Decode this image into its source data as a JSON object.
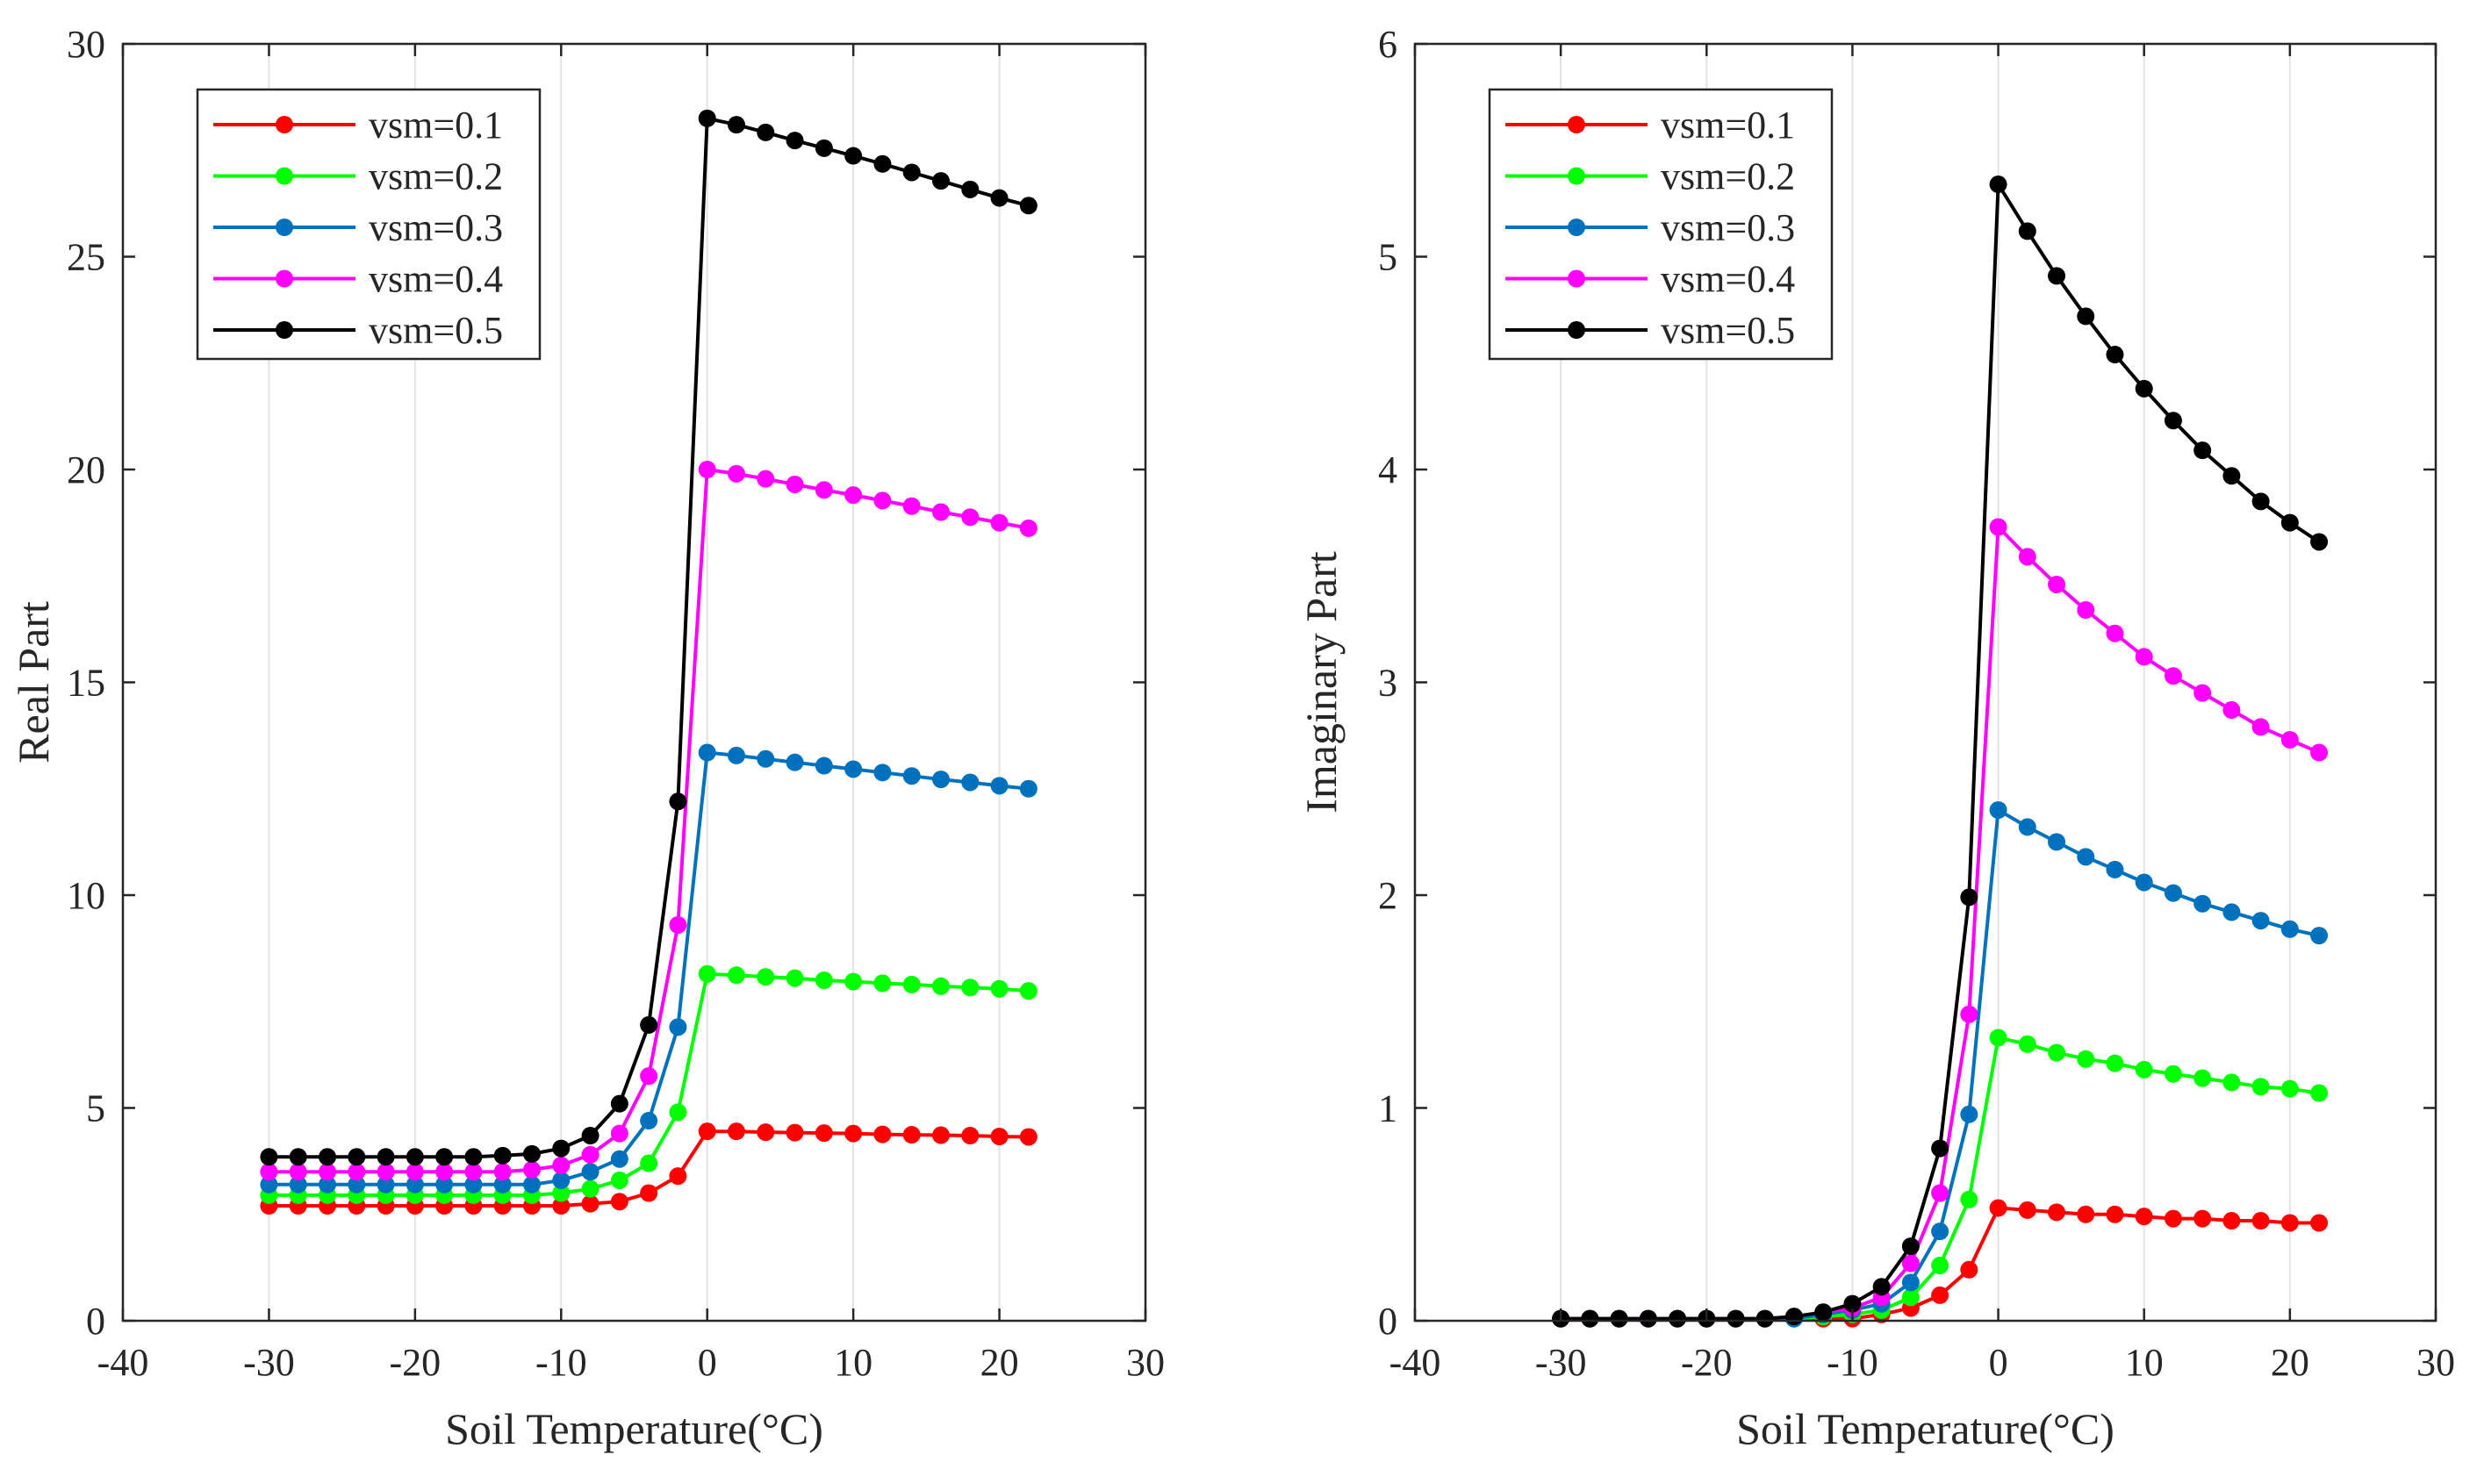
{
  "chart_data": [
    {
      "type": "line",
      "title": "",
      "xlabel": "Soil Temperature(°C)",
      "ylabel": "Real Part",
      "xlim": [
        -40,
        30
      ],
      "ylim": [
        0,
        30
      ],
      "xticks": [
        "-40",
        "-30",
        "-20",
        "-10",
        "0",
        "10",
        "20",
        "30"
      ],
      "yticks": [
        "0",
        "5",
        "10",
        "15",
        "20",
        "25",
        "30"
      ],
      "grid": "vertical",
      "legend_position": "top-left",
      "x": [
        -30,
        -28,
        -26,
        -24,
        -22,
        -20,
        -18,
        -16,
        -14,
        -12,
        -10,
        -8,
        -6,
        -4,
        -2,
        0,
        2,
        4,
        6,
        8,
        10,
        12,
        14,
        16,
        18,
        20,
        22
      ],
      "series": [
        {
          "name": "vsm=0.1",
          "color": "#ff0000",
          "values": [
            2.7,
            2.7,
            2.7,
            2.7,
            2.7,
            2.7,
            2.7,
            2.7,
            2.7,
            2.7,
            2.7,
            2.75,
            2.8,
            3.0,
            3.4,
            4.45,
            4.45,
            4.43,
            4.42,
            4.41,
            4.4,
            4.38,
            4.37,
            4.36,
            4.35,
            4.33,
            4.32
          ]
        },
        {
          "name": "vsm=0.2",
          "color": "#00ff00",
          "values": [
            2.95,
            2.95,
            2.95,
            2.95,
            2.95,
            2.95,
            2.95,
            2.95,
            2.95,
            2.95,
            3.0,
            3.1,
            3.3,
            3.7,
            4.9,
            8.15,
            8.12,
            8.08,
            8.05,
            8.0,
            7.97,
            7.93,
            7.9,
            7.86,
            7.83,
            7.8,
            7.75
          ]
        },
        {
          "name": "vsm=0.3",
          "color": "#0072bd",
          "values": [
            3.2,
            3.2,
            3.2,
            3.2,
            3.2,
            3.2,
            3.2,
            3.2,
            3.2,
            3.2,
            3.3,
            3.5,
            3.8,
            4.7,
            6.9,
            13.35,
            13.28,
            13.2,
            13.12,
            13.04,
            12.96,
            12.88,
            12.8,
            12.72,
            12.65,
            12.57,
            12.5
          ]
        },
        {
          "name": "vsm=0.4",
          "color": "#ff00ff",
          "values": [
            3.5,
            3.5,
            3.5,
            3.5,
            3.5,
            3.5,
            3.5,
            3.5,
            3.5,
            3.55,
            3.65,
            3.9,
            4.4,
            5.75,
            9.3,
            20.0,
            19.9,
            19.78,
            19.65,
            19.52,
            19.4,
            19.27,
            19.14,
            19.0,
            18.88,
            18.75,
            18.62
          ]
        },
        {
          "name": "vsm=0.5",
          "color": "#000000",
          "values": [
            3.85,
            3.85,
            3.85,
            3.85,
            3.85,
            3.85,
            3.85,
            3.85,
            3.88,
            3.92,
            4.05,
            4.35,
            5.1,
            6.95,
            12.2,
            28.25,
            28.1,
            27.92,
            27.73,
            27.55,
            27.37,
            27.18,
            26.98,
            26.78,
            26.58,
            26.38,
            26.2
          ]
        }
      ]
    },
    {
      "type": "line",
      "title": "",
      "xlabel": "Soil Temperature(°C)",
      "ylabel": "Imaginary Part",
      "xlim": [
        -40,
        30
      ],
      "ylim": [
        0,
        6
      ],
      "xticks": [
        "-40",
        "-30",
        "-20",
        "-10",
        "0",
        "10",
        "20",
        "30"
      ],
      "yticks": [
        "0",
        "1",
        "2",
        "3",
        "4",
        "5",
        "6"
      ],
      "grid": "vertical",
      "legend_position": "top-left",
      "x": [
        -30,
        -28,
        -26,
        -24,
        -22,
        -20,
        -18,
        -16,
        -14,
        -12,
        -10,
        -8,
        -6,
        -4,
        -2,
        0,
        2,
        4,
        6,
        8,
        10,
        12,
        14,
        16,
        18,
        20,
        22
      ],
      "series": [
        {
          "name": "vsm=0.1",
          "color": "#ff0000",
          "values": [
            0.01,
            0.01,
            0.01,
            0.01,
            0.01,
            0.01,
            0.01,
            0.01,
            0.01,
            0.01,
            0.01,
            0.03,
            0.06,
            0.12,
            0.24,
            0.53,
            0.52,
            0.51,
            0.5,
            0.5,
            0.49,
            0.48,
            0.48,
            0.47,
            0.47,
            0.46,
            0.46
          ]
        },
        {
          "name": "vsm=0.2",
          "color": "#00ff00",
          "values": [
            0.01,
            0.01,
            0.01,
            0.01,
            0.01,
            0.01,
            0.01,
            0.01,
            0.01,
            0.02,
            0.03,
            0.05,
            0.11,
            0.26,
            0.57,
            1.33,
            1.3,
            1.26,
            1.23,
            1.21,
            1.18,
            1.16,
            1.14,
            1.12,
            1.1,
            1.09,
            1.07
          ]
        },
        {
          "name": "vsm=0.3",
          "color": "#0072bd",
          "values": [
            0.01,
            0.01,
            0.01,
            0.01,
            0.01,
            0.01,
            0.01,
            0.01,
            0.01,
            0.03,
            0.05,
            0.08,
            0.18,
            0.42,
            0.97,
            2.4,
            2.32,
            2.25,
            2.18,
            2.12,
            2.06,
            2.01,
            1.96,
            1.92,
            1.88,
            1.84,
            1.81
          ]
        },
        {
          "name": "vsm=0.4",
          "color": "#ff00ff",
          "values": [
            0.01,
            0.01,
            0.01,
            0.01,
            0.01,
            0.01,
            0.01,
            0.01,
            0.02,
            0.04,
            0.06,
            0.11,
            0.27,
            0.6,
            1.44,
            3.73,
            3.59,
            3.46,
            3.34,
            3.23,
            3.12,
            3.03,
            2.95,
            2.87,
            2.79,
            2.73,
            2.67
          ]
        },
        {
          "name": "vsm=0.5",
          "color": "#000000",
          "values": [
            0.01,
            0.01,
            0.01,
            0.01,
            0.01,
            0.01,
            0.01,
            0.01,
            0.02,
            0.04,
            0.08,
            0.16,
            0.35,
            0.81,
            1.99,
            5.34,
            5.12,
            4.91,
            4.72,
            4.54,
            4.38,
            4.23,
            4.09,
            3.97,
            3.85,
            3.75,
            3.66
          ]
        }
      ]
    }
  ]
}
